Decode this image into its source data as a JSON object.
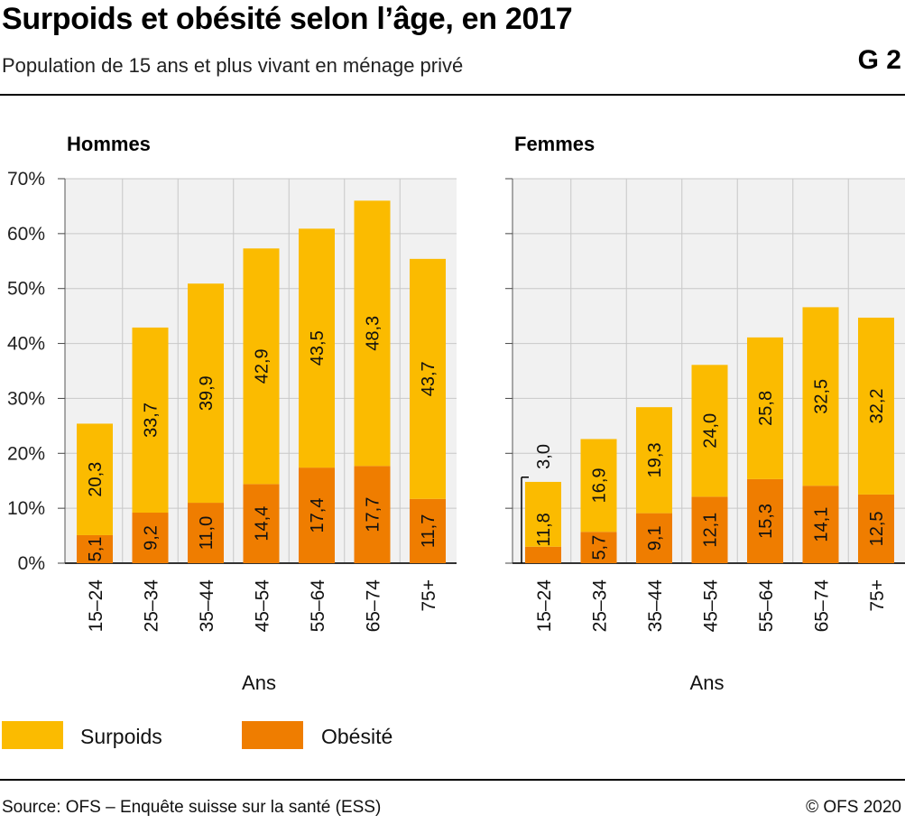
{
  "header": {
    "title": "Surpoids et obésité selon l’âge, en 2017",
    "subtitle": "Population de 15 ans et plus vivant en ménage privé",
    "badge": "G 2"
  },
  "footer": {
    "source": "Source: OFS – Enquête suisse sur la santé (ESS)",
    "copyright": "© OFS 2020"
  },
  "colors": {
    "surpoids": "#fbbb00",
    "obesite": "#ef7d00",
    "plot_bg": "#f1f1f1",
    "grid": "#c8c8c8"
  },
  "chart_data": {
    "type": "bar",
    "stacked": true,
    "ylim": [
      0,
      70
    ],
    "yticks": [
      "0%",
      "10%",
      "20%",
      "30%",
      "40%",
      "50%",
      "60%",
      "70%"
    ],
    "xlabel": "Ans",
    "legend": [
      "Surpoids",
      "Obésité"
    ],
    "categories": [
      "15–24",
      "25–34",
      "35–44",
      "45–54",
      "55–64",
      "65–74",
      "75+"
    ],
    "panels": [
      {
        "title": "Hommes",
        "series": [
          {
            "name": "Obésité",
            "values": [
              5.1,
              9.2,
              11.0,
              14.4,
              17.4,
              17.7,
              11.7
            ],
            "labels": [
              "5,1",
              "9,2",
              "11,0",
              "14,4",
              "17,4",
              "17,7",
              "11,7"
            ]
          },
          {
            "name": "Surpoids",
            "values": [
              20.3,
              33.7,
              39.9,
              42.9,
              43.5,
              48.3,
              43.7
            ],
            "labels": [
              "20,3",
              "33,7",
              "39,9",
              "42,9",
              "43,5",
              "48,3",
              "43,7"
            ]
          }
        ]
      },
      {
        "title": "Femmes",
        "series": [
          {
            "name": "Obésité",
            "values": [
              3.0,
              5.7,
              9.1,
              12.1,
              15.3,
              14.1,
              12.5
            ],
            "labels": [
              "3,0",
              "5,7",
              "9,1",
              "12,1",
              "15,3",
              "14,1",
              "12,5"
            ]
          },
          {
            "name": "Surpoids",
            "values": [
              11.8,
              16.9,
              19.3,
              24.0,
              25.8,
              32.5,
              32.2
            ],
            "labels": [
              "11,8",
              "16,9",
              "19,3",
              "24,0",
              "25,8",
              "32,5",
              "32,2"
            ]
          }
        ]
      }
    ]
  }
}
